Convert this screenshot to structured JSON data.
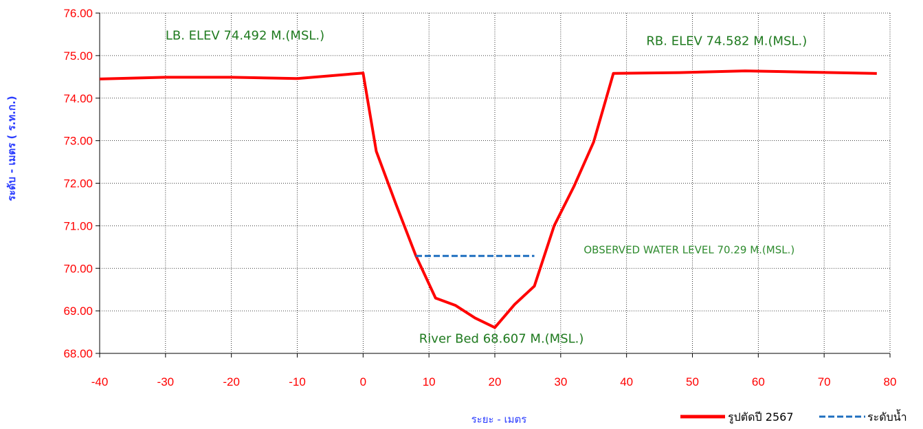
{
  "chart_data": {
    "type": "line",
    "xlabel": "ระยะ - เมตร",
    "ylabel": "ระดับ - เมตร ( ร.ท.ก.)",
    "xlim": [
      -40,
      80
    ],
    "ylim": [
      68,
      76
    ],
    "xticks": [
      "-40",
      "-30",
      "-20",
      "-10",
      "0",
      "10",
      "20",
      "30",
      "40",
      "50",
      "60",
      "70",
      "80"
    ],
    "yticks": [
      "68.00",
      "69.00",
      "70.00",
      "71.00",
      "72.00",
      "73.00",
      "74.00",
      "75.00",
      "76.00"
    ],
    "grid": true,
    "legend_position": "bottom-right",
    "series": [
      {
        "name": "รูปตัดปี 2567",
        "color": "#ff0000",
        "style": "solid",
        "x": [
          -40,
          -30,
          -20,
          -10,
          0,
          2,
          5,
          8,
          11,
          14,
          17,
          20,
          23,
          26,
          29,
          32,
          35,
          38,
          48,
          58,
          68,
          78
        ],
        "y": [
          74.45,
          74.49,
          74.49,
          74.46,
          74.59,
          72.75,
          71.5,
          70.3,
          69.3,
          69.13,
          68.83,
          68.607,
          69.15,
          69.58,
          71.0,
          71.92,
          72.97,
          74.582,
          74.6,
          74.64,
          74.61,
          74.58
        ]
      },
      {
        "name": "ระดับน้ำ",
        "color": "#1f6fbf",
        "style": "dashed",
        "x": [
          8,
          26
        ],
        "y": [
          70.29,
          70.29
        ]
      }
    ],
    "annotations": [
      {
        "text": "LB. ELEV 74.492 M.(MSL.)",
        "x": -30,
        "y": 75.38
      },
      {
        "text": "RB. ELEV  74.582 M.(MSL.)",
        "x": 43,
        "y": 75.25
      },
      {
        "text": "OBSERVED WATER LEVEL   70.29 M.(MSL.)",
        "x": 33.5,
        "y": 70.35
      },
      {
        "text": "River  Bed 68.607    M.(MSL.)",
        "x": 8.5,
        "y": 68.25
      }
    ]
  }
}
